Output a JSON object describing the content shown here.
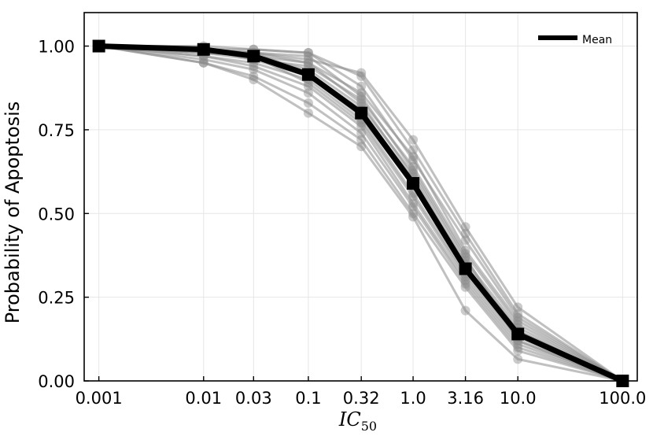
{
  "chart_data": {
    "type": "line",
    "ylabel": "Probability of Apoptosis",
    "xlabel": "IC",
    "xlabel_subscript": "50",
    "xlabel_style": "italic",
    "x_scale": "log",
    "x": [
      0.001,
      0.01,
      0.03,
      0.1,
      0.32,
      1.0,
      3.16,
      10.0,
      100.0
    ],
    "x_tick_labels": [
      "0.001",
      "0.01",
      "0.03",
      "0.1",
      "0.32",
      "1.0",
      "3.16",
      "10.0",
      "100.0"
    ],
    "ylim": [
      0,
      1.1
    ],
    "y_ticks": [
      0.0,
      0.25,
      0.5,
      0.75,
      1.0
    ],
    "y_tick_labels": [
      "0.00",
      "0.25",
      "0.50",
      "0.75",
      "1.00"
    ],
    "grid": true,
    "legend": {
      "position": "top-right",
      "entries": [
        "Mean"
      ]
    },
    "mean_series": {
      "name": "Mean",
      "color": "#000000",
      "marker": "square",
      "values": [
        1.0,
        0.99,
        0.97,
        0.915,
        0.8,
        0.59,
        0.335,
        0.14,
        0.0
      ]
    },
    "individual_series_color": "#8c8c8c",
    "individual_series": [
      [
        1.0,
        0.99,
        0.98,
        0.96,
        0.92,
        0.72,
        0.46,
        0.22,
        0.0
      ],
      [
        1.0,
        0.99,
        0.99,
        0.98,
        0.91,
        0.69,
        0.44,
        0.2,
        0.0
      ],
      [
        1.0,
        1.0,
        0.99,
        0.98,
        0.88,
        0.66,
        0.42,
        0.19,
        0.0
      ],
      [
        1.0,
        0.98,
        0.97,
        0.95,
        0.86,
        0.67,
        0.39,
        0.18,
        0.0
      ],
      [
        1.0,
        0.99,
        0.96,
        0.94,
        0.84,
        0.64,
        0.38,
        0.17,
        0.0
      ],
      [
        1.0,
        0.98,
        0.97,
        0.93,
        0.82,
        0.62,
        0.36,
        0.16,
        0.0
      ],
      [
        1.0,
        0.99,
        0.98,
        0.92,
        0.81,
        0.6,
        0.35,
        0.15,
        0.0
      ],
      [
        1.0,
        0.98,
        0.96,
        0.91,
        0.79,
        0.58,
        0.33,
        0.14,
        0.0
      ],
      [
        1.0,
        0.97,
        0.95,
        0.9,
        0.78,
        0.56,
        0.32,
        0.13,
        0.0
      ],
      [
        1.0,
        0.99,
        0.97,
        0.89,
        0.77,
        0.55,
        0.31,
        0.12,
        0.0
      ],
      [
        1.0,
        0.97,
        0.94,
        0.88,
        0.76,
        0.53,
        0.3,
        0.11,
        0.0
      ],
      [
        1.0,
        0.96,
        0.93,
        0.86,
        0.74,
        0.52,
        0.29,
        0.1,
        0.0
      ],
      [
        1.0,
        0.95,
        0.91,
        0.83,
        0.72,
        0.5,
        0.28,
        0.09,
        0.0
      ],
      [
        1.0,
        0.95,
        0.9,
        0.8,
        0.7,
        0.49,
        0.21,
        0.065,
        0.0
      ],
      [
        1.0,
        0.98,
        0.98,
        0.97,
        0.85,
        0.63,
        0.37,
        0.12,
        0.0
      ],
      [
        1.0,
        0.99,
        0.98,
        0.95,
        0.83,
        0.61,
        0.34,
        0.15,
        0.0
      ]
    ]
  }
}
